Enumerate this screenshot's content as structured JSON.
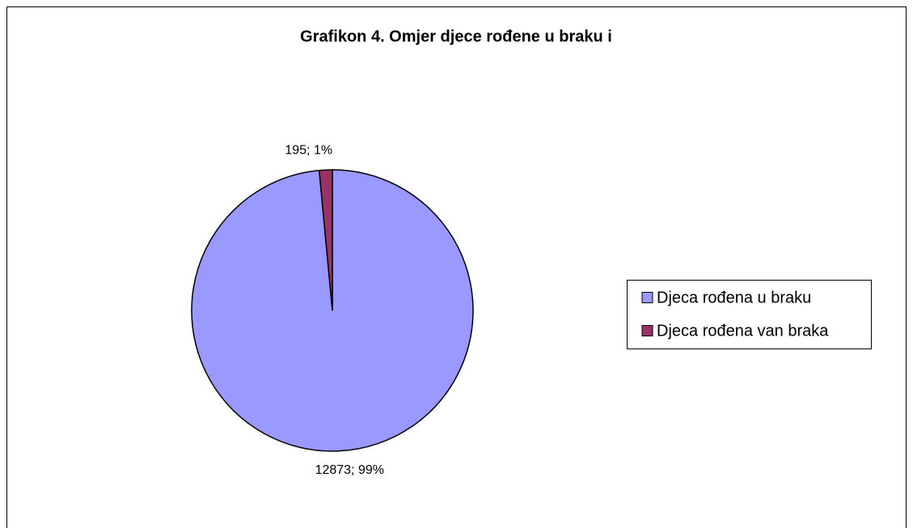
{
  "chart_data": {
    "type": "pie",
    "title": "Grafikon 4. Omjer djece rođene u braku i",
    "categories": [
      "Djeca rođena u braku",
      "Djeca rođena van braka"
    ],
    "values": [
      12873,
      195
    ],
    "value_labels": [
      "12873; 99%",
      "195; 1%"
    ],
    "colors": [
      "#9999ff",
      "#993366"
    ],
    "legend": "right"
  }
}
